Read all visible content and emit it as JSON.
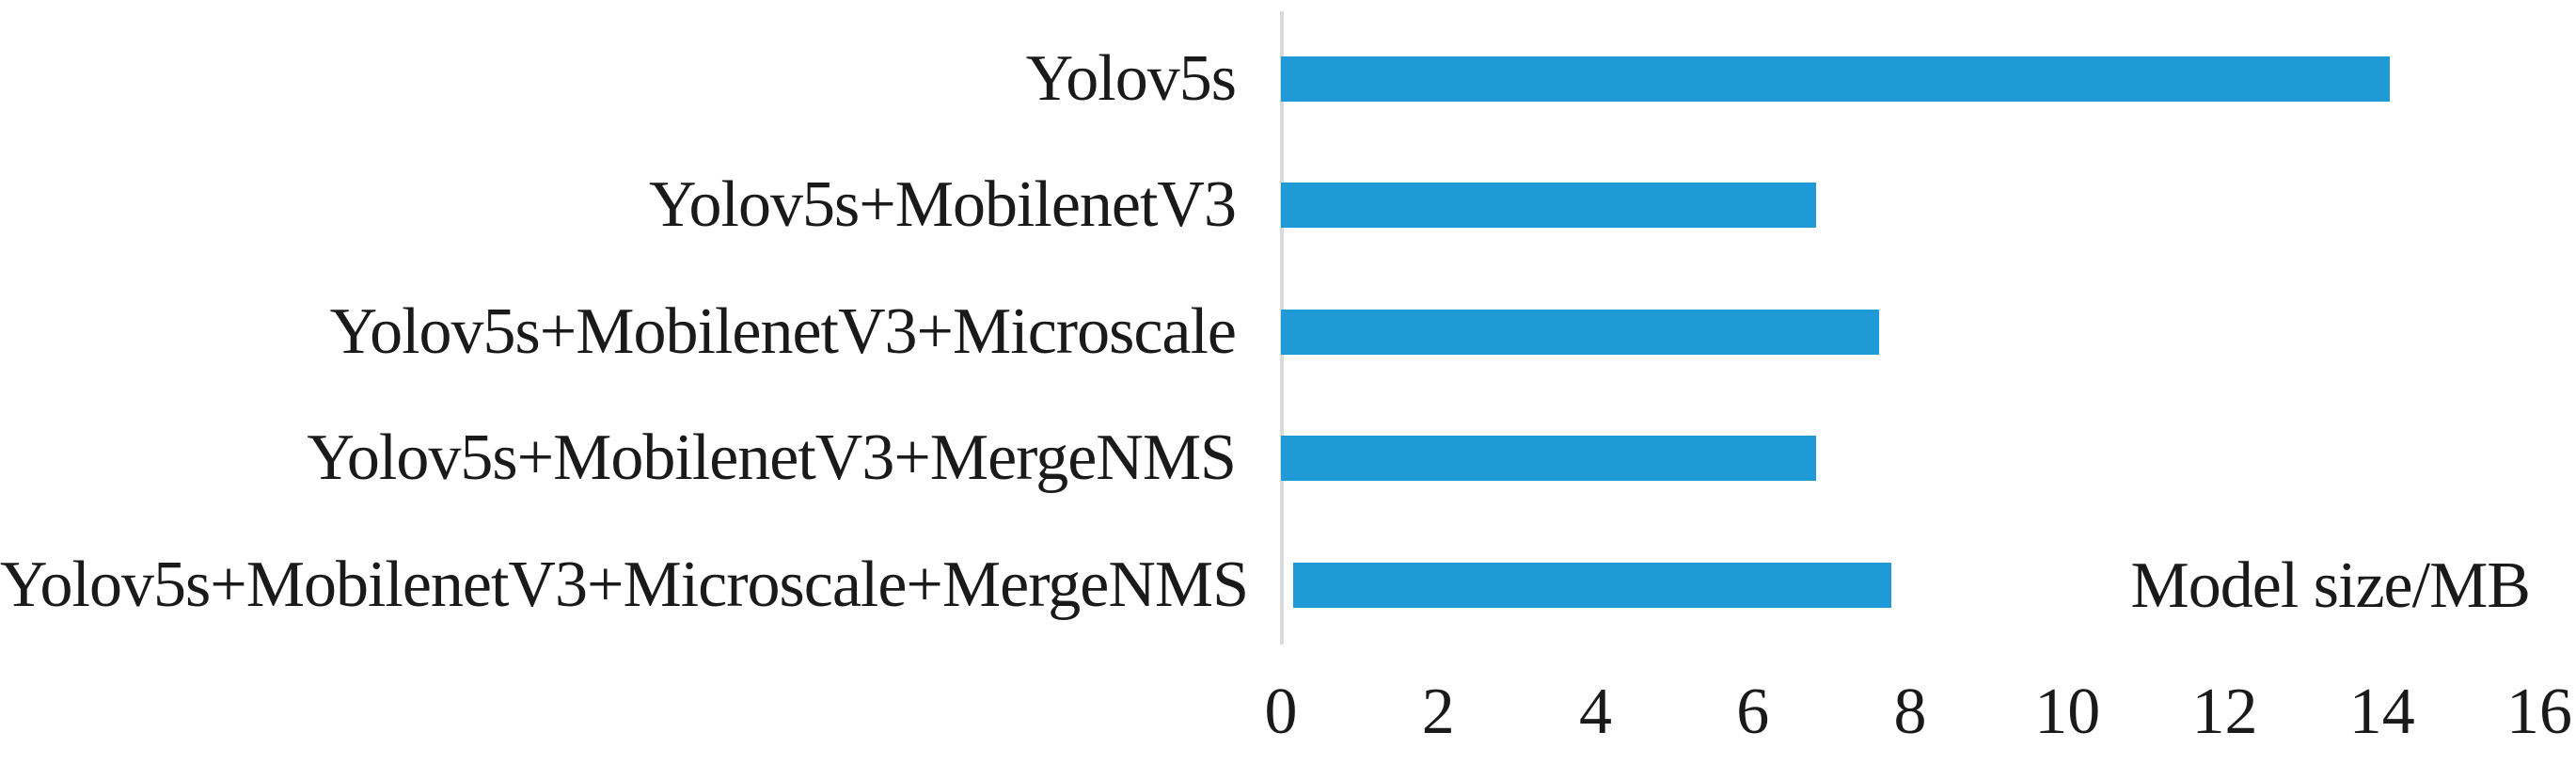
{
  "chart_data": {
    "type": "bar",
    "orientation": "horizontal",
    "title": "",
    "xlabel": "Model size/MB",
    "ylabel": "",
    "categories": [
      "Yolov5s",
      "Yolov5s+MobilenetV3",
      "Yolov5s+MobilenetV3+Microscale",
      "Yolov5s+MobilenetV3+MergeNMS",
      "Yolov5s+MobilenetV3+Microscale+MergeNMS"
    ],
    "values": [
      14.1,
      6.8,
      7.6,
      6.8,
      7.6
    ],
    "xlim": [
      0,
      16
    ],
    "xticks": [
      0,
      2,
      4,
      6,
      8,
      10,
      12,
      14,
      16
    ],
    "grid": "off",
    "legend": "none",
    "bar_color": "#1F9AD6",
    "axis_line_color": "#DADADA",
    "text_color": "#1a1a1a"
  }
}
